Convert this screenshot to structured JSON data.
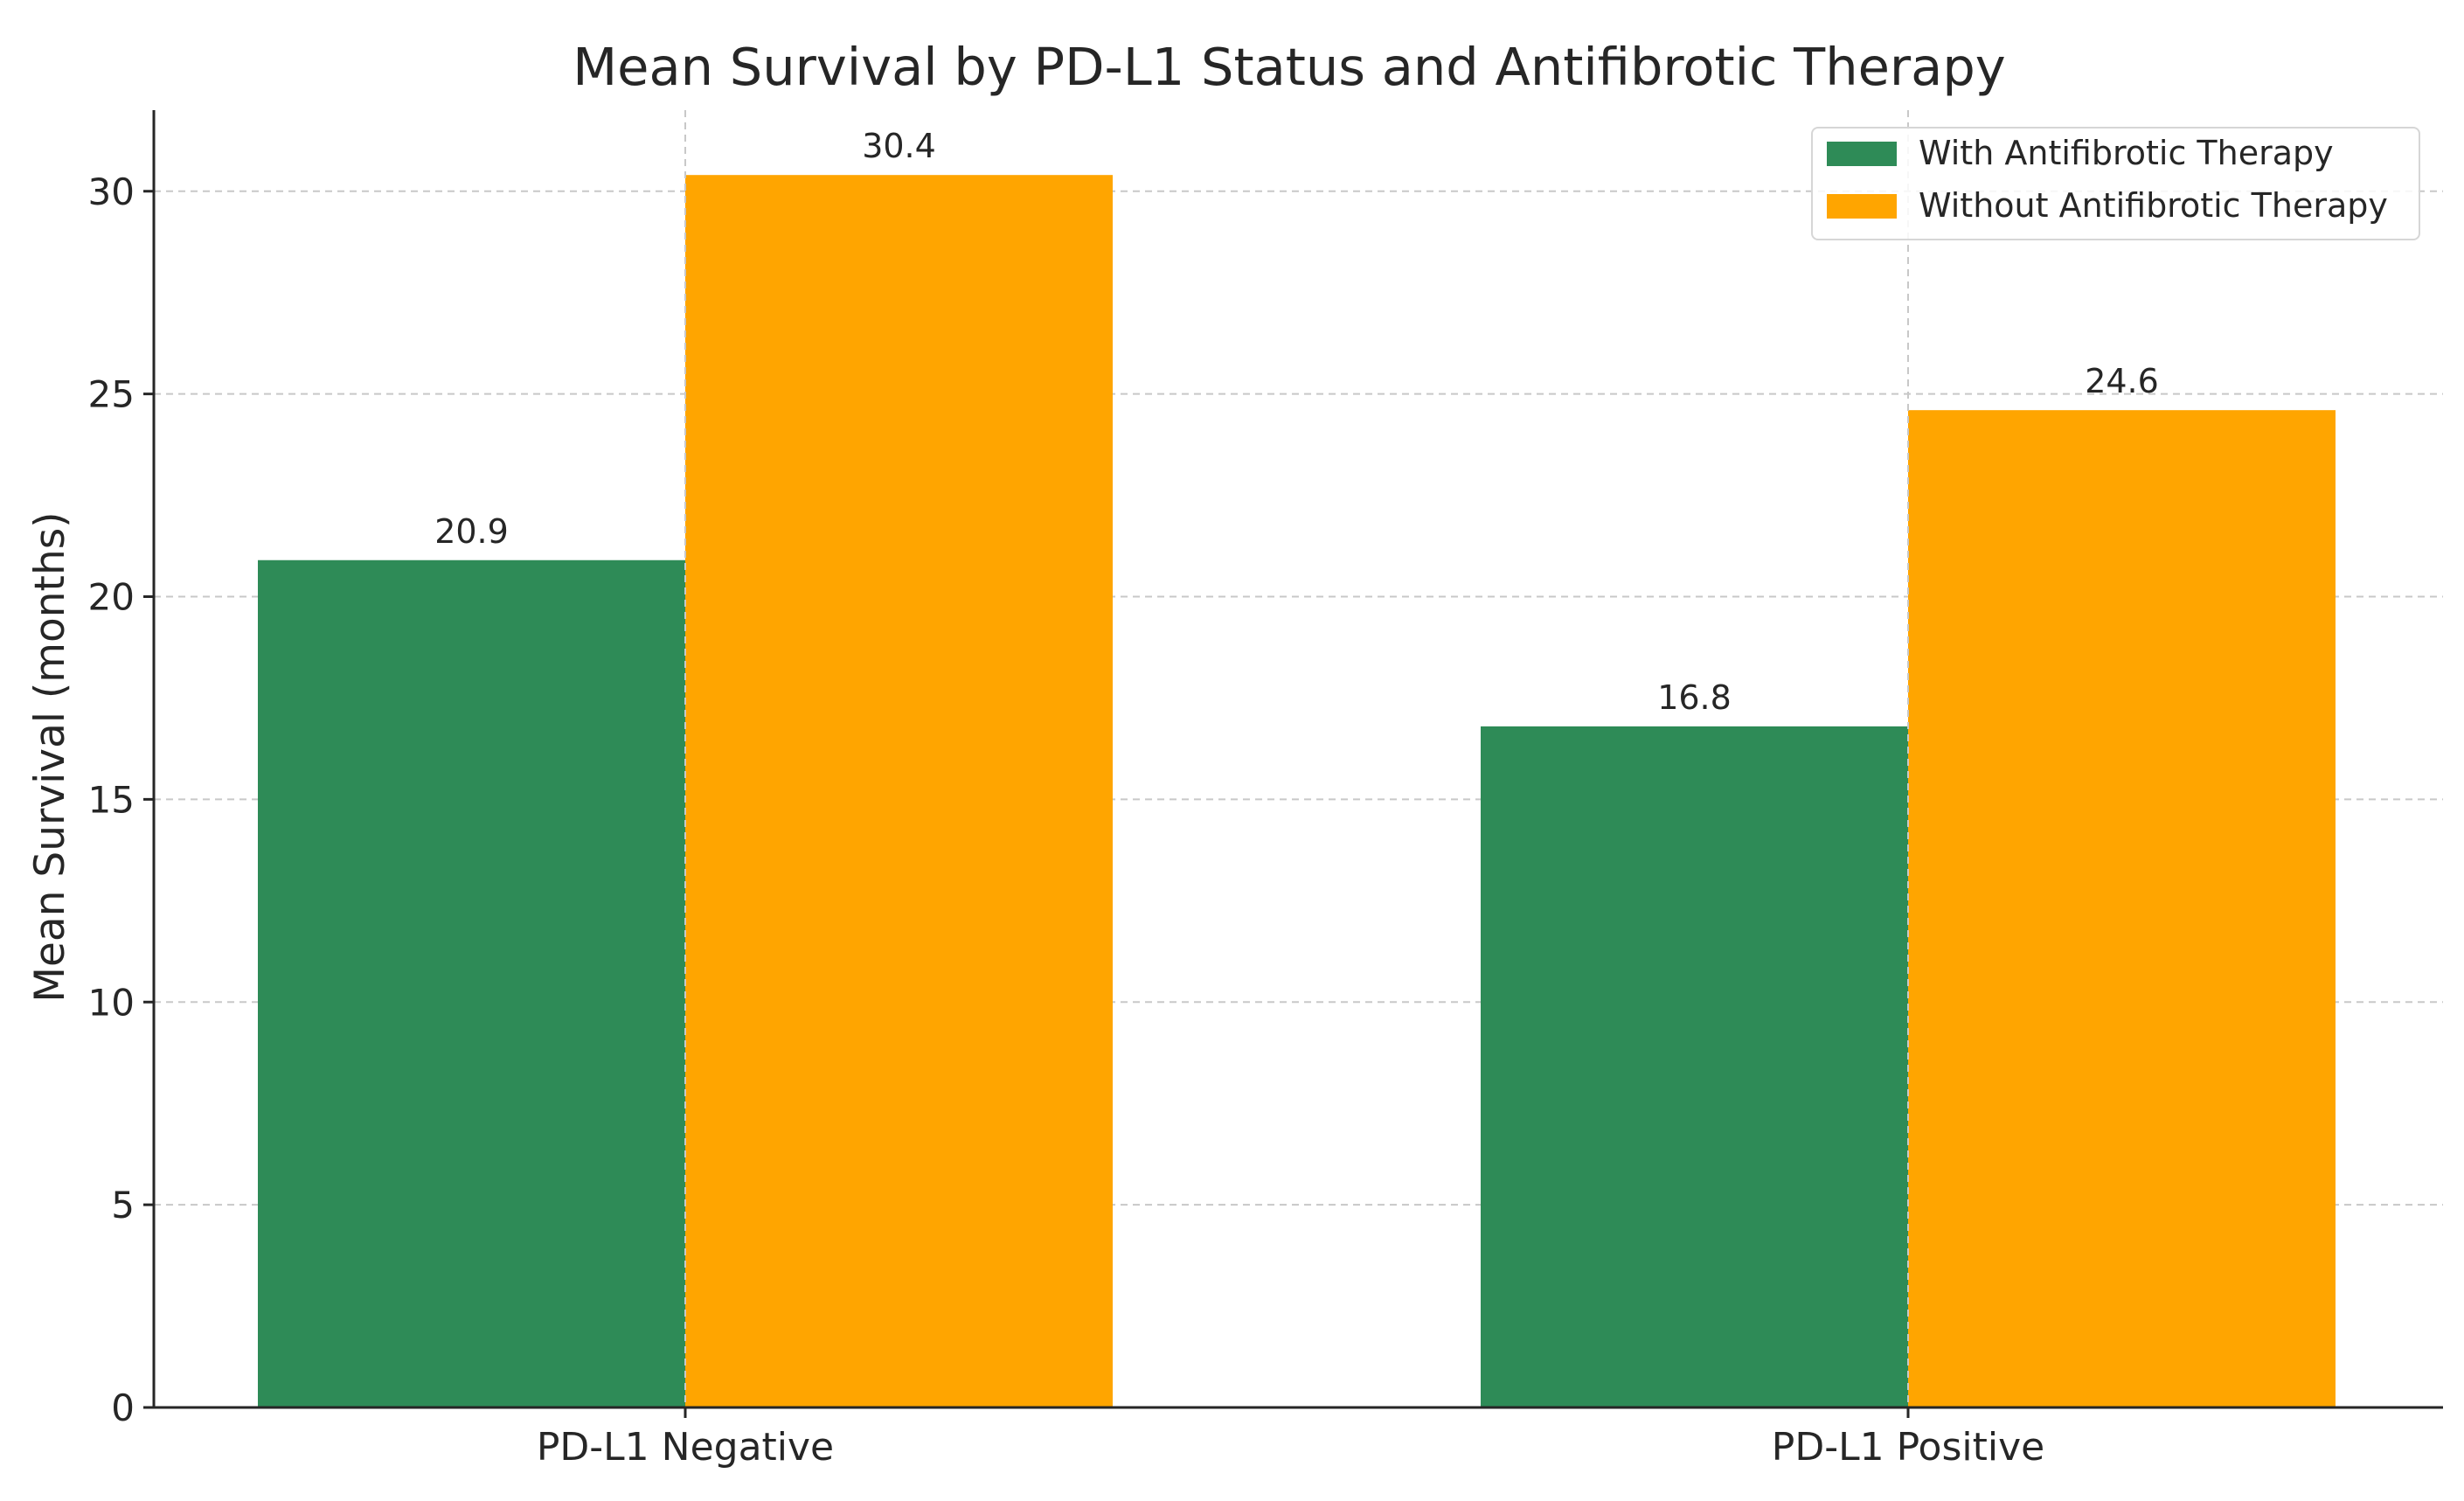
{
  "chart_data": {
    "type": "bar",
    "title": "Mean Survival by PD-L1 Status and Antifibrotic Therapy",
    "xlabel": "",
    "ylabel": "Mean Survival (months)",
    "categories": [
      "PD-L1 Negative",
      "PD-L1 Positive"
    ],
    "series": [
      {
        "name": "With Antifibrotic Therapy",
        "values": [
          20.9,
          16.8
        ],
        "color": "#2e8b57"
      },
      {
        "name": "Without Antifibrotic Therapy",
        "values": [
          30.4,
          24.6
        ],
        "color": "#ffa500"
      }
    ],
    "ylim": [
      0,
      32
    ],
    "yticks": [
      0,
      5,
      10,
      15,
      20,
      25,
      30
    ],
    "grid": true,
    "legend_position": "top-right",
    "data_labels": true
  }
}
